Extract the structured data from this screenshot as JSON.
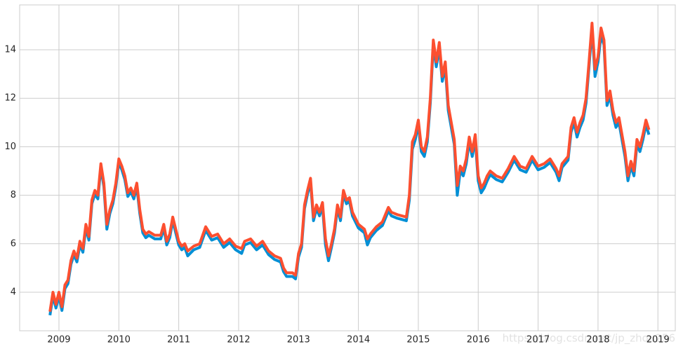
{
  "chart_data": {
    "type": "line",
    "x": [
      2008.85,
      2008.9,
      2008.95,
      2009.0,
      2009.05,
      2009.1,
      2009.15,
      2009.2,
      2009.25,
      2009.3,
      2009.35,
      2009.4,
      2009.45,
      2009.5,
      2009.55,
      2009.6,
      2009.65,
      2009.7,
      2009.75,
      2009.8,
      2009.85,
      2009.9,
      2009.95,
      2010.0,
      2010.05,
      2010.1,
      2010.15,
      2010.2,
      2010.25,
      2010.3,
      2010.35,
      2010.4,
      2010.45,
      2010.5,
      2010.6,
      2010.7,
      2010.75,
      2010.8,
      2010.85,
      2010.9,
      2011.0,
      2011.05,
      2011.1,
      2011.15,
      2011.25,
      2011.35,
      2011.45,
      2011.55,
      2011.65,
      2011.75,
      2011.85,
      2011.95,
      2012.05,
      2012.1,
      2012.2,
      2012.3,
      2012.4,
      2012.5,
      2012.6,
      2012.7,
      2012.75,
      2012.8,
      2012.9,
      2012.95,
      2013.0,
      2013.05,
      2013.1,
      2013.15,
      2013.2,
      2013.25,
      2013.3,
      2013.35,
      2013.4,
      2013.45,
      2013.5,
      2013.55,
      2013.6,
      2013.65,
      2013.7,
      2013.75,
      2013.8,
      2013.85,
      2013.9,
      2014.0,
      2014.1,
      2014.15,
      2014.2,
      2014.3,
      2014.4,
      2014.5,
      2014.55,
      2014.65,
      2014.8,
      2014.85,
      2014.9,
      2014.95,
      2015.0,
      2015.05,
      2015.1,
      2015.15,
      2015.2,
      2015.25,
      2015.3,
      2015.35,
      2015.4,
      2015.45,
      2015.5,
      2015.55,
      2015.6,
      2015.65,
      2015.7,
      2015.75,
      2015.8,
      2015.85,
      2015.9,
      2015.95,
      2016.0,
      2016.05,
      2016.1,
      2016.15,
      2016.2,
      2016.3,
      2016.4,
      2016.5,
      2016.6,
      2016.7,
      2016.8,
      2016.9,
      2017.0,
      2017.1,
      2017.2,
      2017.3,
      2017.35,
      2017.4,
      2017.5,
      2017.55,
      2017.6,
      2017.65,
      2017.7,
      2017.75,
      2017.8,
      2017.85,
      2017.9,
      2017.95,
      2018.0,
      2018.05,
      2018.1,
      2018.15,
      2018.2,
      2018.25,
      2018.3,
      2018.35,
      2018.4,
      2018.45,
      2018.5,
      2018.55,
      2018.6,
      2018.65,
      2018.7,
      2018.75,
      2018.8,
      2018.85
    ],
    "series": [
      {
        "color": "#008fd5",
        "values": [
          3.05,
          3.85,
          3.35,
          3.85,
          3.25,
          4.15,
          4.35,
          5.15,
          5.55,
          5.25,
          5.95,
          5.65,
          6.65,
          6.15,
          7.65,
          8.05,
          7.85,
          9.15,
          8.35,
          6.6,
          7.25,
          7.65,
          8.35,
          9.35,
          9.05,
          8.65,
          7.95,
          8.15,
          7.85,
          8.35,
          7.25,
          6.45,
          6.25,
          6.35,
          6.2,
          6.2,
          6.65,
          5.95,
          6.25,
          6.95,
          5.95,
          5.75,
          5.85,
          5.5,
          5.75,
          5.85,
          6.55,
          6.15,
          6.25,
          5.85,
          6.05,
          5.75,
          5.6,
          5.95,
          6.05,
          5.75,
          5.95,
          5.55,
          5.35,
          5.25,
          4.85,
          4.65,
          4.65,
          4.55,
          5.45,
          5.85,
          7.45,
          8.05,
          8.55,
          6.95,
          7.45,
          7.15,
          7.55,
          5.95,
          5.3,
          5.85,
          6.45,
          7.45,
          6.95,
          8.05,
          7.65,
          7.75,
          7.15,
          6.65,
          6.45,
          5.95,
          6.25,
          6.55,
          6.75,
          7.35,
          7.15,
          7.05,
          6.95,
          7.8,
          9.9,
          10.3,
          10.9,
          9.8,
          9.6,
          10.2,
          11.8,
          14.2,
          13.3,
          14.1,
          12.7,
          13.3,
          11.5,
          10.8,
          10.1,
          8.0,
          9.0,
          8.8,
          9.3,
          10.2,
          9.6,
          10.3,
          8.6,
          8.1,
          8.3,
          8.6,
          8.85,
          8.65,
          8.55,
          8.95,
          9.45,
          9.05,
          8.95,
          9.45,
          9.05,
          9.15,
          9.35,
          8.95,
          8.6,
          9.15,
          9.45,
          10.6,
          11.0,
          10.4,
          10.8,
          11.1,
          11.8,
          13.3,
          14.9,
          12.9,
          13.5,
          14.6,
          14.2,
          11.7,
          12.1,
          11.3,
          10.8,
          11.0,
          10.3,
          9.6,
          8.6,
          9.2,
          8.8,
          10.1,
          9.8,
          10.3,
          10.9,
          10.5
        ]
      },
      {
        "color": "#fc4f30",
        "values": [
          3.2,
          4.0,
          3.5,
          4.0,
          3.4,
          4.3,
          4.5,
          5.3,
          5.7,
          5.4,
          6.1,
          5.8,
          6.8,
          6.3,
          7.8,
          8.2,
          8.0,
          9.3,
          8.5,
          6.8,
          7.4,
          7.8,
          8.5,
          9.5,
          9.2,
          8.8,
          8.1,
          8.3,
          8.0,
          8.5,
          7.4,
          6.6,
          6.4,
          6.5,
          6.35,
          6.35,
          6.8,
          6.1,
          6.4,
          7.1,
          6.1,
          5.9,
          6.0,
          5.7,
          5.9,
          6.0,
          6.7,
          6.3,
          6.4,
          6.0,
          6.2,
          5.9,
          5.8,
          6.1,
          6.2,
          5.9,
          6.1,
          5.7,
          5.5,
          5.4,
          5.0,
          4.8,
          4.8,
          4.7,
          5.6,
          6.0,
          7.6,
          8.2,
          8.7,
          7.1,
          7.6,
          7.3,
          7.7,
          6.2,
          5.5,
          6.0,
          6.6,
          7.6,
          7.1,
          8.2,
          7.8,
          7.9,
          7.3,
          6.8,
          6.6,
          6.2,
          6.4,
          6.7,
          6.9,
          7.5,
          7.3,
          7.2,
          7.1,
          8.0,
          10.2,
          10.5,
          11.1,
          10.0,
          9.8,
          10.4,
          12.0,
          14.4,
          13.5,
          14.3,
          12.9,
          13.5,
          11.7,
          11.0,
          10.3,
          8.4,
          9.2,
          9.0,
          9.5,
          10.4,
          9.8,
          10.5,
          8.8,
          8.3,
          8.5,
          8.8,
          9.0,
          8.8,
          8.7,
          9.1,
          9.6,
          9.2,
          9.1,
          9.6,
          9.2,
          9.3,
          9.5,
          9.1,
          8.8,
          9.3,
          9.6,
          10.8,
          11.2,
          10.6,
          11.0,
          11.3,
          12.0,
          13.5,
          15.1,
          13.2,
          13.7,
          14.9,
          14.4,
          11.9,
          12.3,
          11.5,
          11.0,
          11.2,
          10.5,
          9.8,
          8.8,
          9.4,
          9.0,
          10.3,
          10.0,
          10.5,
          11.1,
          10.7
        ]
      }
    ],
    "xlim": [
      2008.344,
      2019.29
    ],
    "xticks": [
      2009,
      2010,
      2011,
      2012,
      2013,
      2014,
      2015,
      2016,
      2017,
      2018,
      2019
    ],
    "ylim": [
      2.41,
      15.85
    ],
    "yticks": [
      4,
      6,
      8,
      10,
      12,
      14
    ],
    "grid": true,
    "watermark": "https://blog.csdn.net/jp_zhou256"
  }
}
